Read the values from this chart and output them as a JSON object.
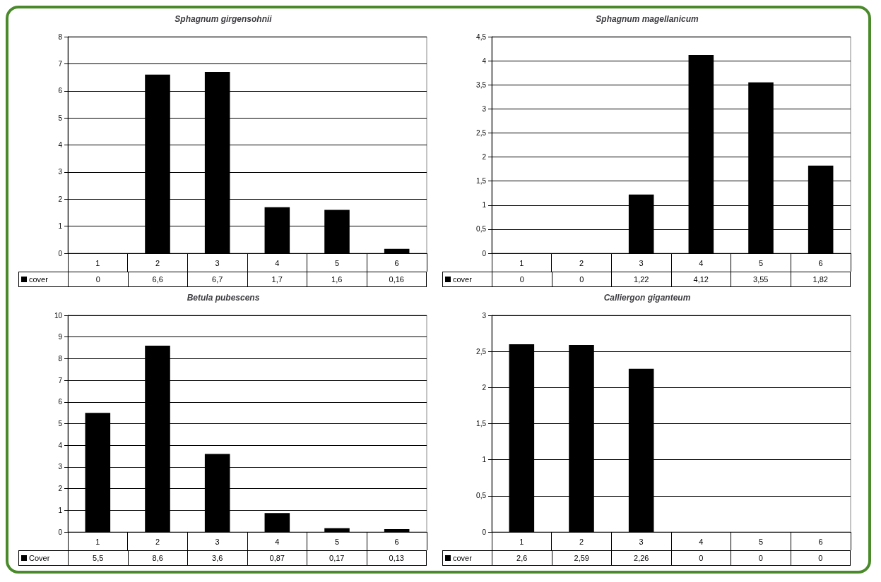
{
  "chart_data": [
    {
      "type": "bar",
      "title": "Sphagnum girgensohnii",
      "categories": [
        "1",
        "2",
        "3",
        "4",
        "5",
        "6"
      ],
      "series": [
        {
          "name": "cover",
          "color": "#000000",
          "values": [
            0,
            6.6,
            6.7,
            1.7,
            1.6,
            0.16
          ],
          "value_labels": [
            "0",
            "6,6",
            "6,7",
            "1,7",
            "1,6",
            "0,16"
          ]
        }
      ],
      "ylim": [
        0,
        8
      ],
      "yticks": [
        0,
        1,
        2,
        3,
        4,
        5,
        6,
        7,
        8
      ],
      "grid": "y"
    },
    {
      "type": "bar",
      "title": "Sphagnum magellanicum",
      "categories": [
        "1",
        "2",
        "3",
        "4",
        "5",
        "6"
      ],
      "series": [
        {
          "name": "cover",
          "color": "#000000",
          "values": [
            0,
            0,
            1.22,
            4.12,
            3.55,
            1.82
          ],
          "value_labels": [
            "0",
            "0",
            "1,22",
            "4,12",
            "3,55",
            "1,82"
          ]
        }
      ],
      "ylim": [
        0,
        4.5
      ],
      "yticks": [
        0,
        {
          "value": 0.5,
          "label": "0,5"
        },
        1,
        {
          "value": 1.5,
          "label": "1,5"
        },
        2,
        {
          "value": 2.5,
          "label": "2,5"
        },
        3,
        {
          "value": 3.5,
          "label": "3,5"
        },
        4,
        {
          "value": 4.5,
          "label": "4,5"
        }
      ],
      "grid": "y"
    },
    {
      "type": "bar",
      "title": "Betula pubescens",
      "categories": [
        "1",
        "2",
        "3",
        "4",
        "5",
        "6"
      ],
      "series": [
        {
          "name": "Cover",
          "color": "#000000",
          "values": [
            5.5,
            8.6,
            3.6,
            0.87,
            0.17,
            0.13
          ],
          "value_labels": [
            "5,5",
            "8,6",
            "3,6",
            "0,87",
            "0,17",
            "0,13"
          ]
        }
      ],
      "ylim": [
        0,
        10
      ],
      "yticks": [
        0,
        1,
        2,
        3,
        4,
        5,
        6,
        7,
        8,
        9,
        10
      ],
      "grid": "y"
    },
    {
      "type": "bar",
      "title": "Calliergon giganteum",
      "categories": [
        "1",
        "2",
        "3",
        "4",
        "5",
        "6"
      ],
      "series": [
        {
          "name": "cover",
          "color": "#000000",
          "values": [
            2.6,
            2.59,
            2.26,
            0,
            0,
            0
          ],
          "value_labels": [
            "2,6",
            "2,59",
            "2,26",
            "0",
            "0",
            "0"
          ]
        }
      ],
      "ylim": [
        0,
        3
      ],
      "yticks": [
        0,
        {
          "value": 0.5,
          "label": "0,5"
        },
        1,
        {
          "value": 1.5,
          "label": "1,5"
        },
        2,
        {
          "value": 2.5,
          "label": "2,5"
        },
        3
      ],
      "grid": "y"
    }
  ]
}
